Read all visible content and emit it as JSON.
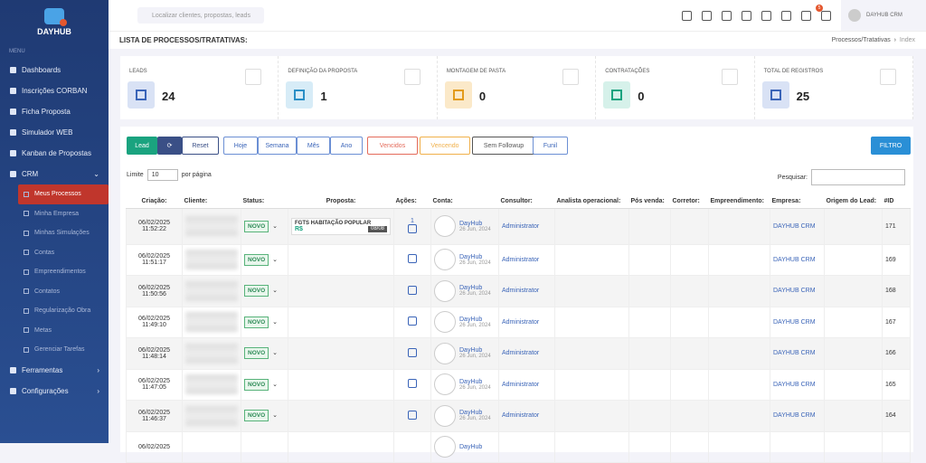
{
  "sidebar": {
    "logo": "DAYHUB",
    "menu_label": "MENU",
    "items": [
      "Dashboards",
      "Inscrições CORBAN",
      "Ficha Proposta",
      "Simulador WEB",
      "Kanban de Propostas"
    ],
    "crm": "CRM",
    "crm_items": [
      "Meus Processos",
      "Minha Empresa",
      "Minhas Simulações",
      "Contas",
      "Empreendimentos",
      "Contatos",
      "Regularização Obra",
      "Metas",
      "Gerenciar Tarefas"
    ],
    "bottom_items": [
      "Ferramentas",
      "Configurações"
    ]
  },
  "topbar": {
    "search_placeholder": "Localizar clientes, propostas, leads",
    "notifications": "5",
    "user": "DAYHUB CRM"
  },
  "header": {
    "title": "LISTA DE PROCESSOS/TRATATIVAS:",
    "breadcrumb": [
      "Processos/Tratativas",
      "Index"
    ]
  },
  "stats": [
    {
      "label": "LEADS",
      "value": 24
    },
    {
      "label": "DEFINIÇÃO DA PROPOSTA",
      "value": 1
    },
    {
      "label": "MONTAGEM DE PASTA",
      "value": 0
    },
    {
      "label": "CONTRATAÇÕES",
      "value": 0
    },
    {
      "label": "TOTAL DE REGISTROS",
      "value": 25
    }
  ],
  "toolbar": {
    "add": "Lead",
    "reset": "Reset",
    "periods": [
      "Hoje",
      "Semana",
      "Mês",
      "Ano"
    ],
    "filters": [
      "Vencidos",
      "Vencendo",
      "Sem Followup"
    ],
    "funnel": "Funil",
    "filter": "FILTRO"
  },
  "list_controls": {
    "limit_label": "Limite",
    "limit": "10",
    "per_page": "por página",
    "search_label": "Pesquisar:"
  },
  "table": {
    "headers": [
      "Criação:",
      "Cliente:",
      "Status:",
      "Proposta:",
      "Ações:",
      "Conta:",
      "Consultor:",
      "Analista operacional:",
      "Pós venda:",
      "Corretor:",
      "Empreendimento:",
      "Empresa:",
      "Origem do Lead:",
      "#ID"
    ],
    "rows": [
      {
        "created": "06/02/2025 11:52:22",
        "status": "NOVO",
        "proposal": {
          "name": "FGTS HABITAÇÃO POPULAR",
          "currency": "R$",
          "date": "08/08"
        },
        "actions_count": "1",
        "account": "DayHub",
        "account_date": "26 Jun, 2024",
        "consultant": "Administrator",
        "company": "DAYHUB CRM",
        "id": 171
      },
      {
        "created": "06/02/2025 11:51:17",
        "status": "NOVO",
        "account": "DayHub",
        "account_date": "26 Jun, 2024",
        "consultant": "Administrator",
        "company": "DAYHUB CRM",
        "id": 169
      },
      {
        "created": "06/02/2025 11:50:56",
        "status": "NOVO",
        "account": "DayHub",
        "account_date": "26 Jun, 2024",
        "consultant": "Administrator",
        "company": "DAYHUB CRM",
        "id": 168
      },
      {
        "created": "06/02/2025 11:49:10",
        "status": "NOVO",
        "account": "DayHub",
        "account_date": "26 Jun, 2024",
        "consultant": "Administrator",
        "company": "DAYHUB CRM",
        "id": 167
      },
      {
        "created": "06/02/2025 11:48:14",
        "status": "NOVO",
        "account": "DayHub",
        "account_date": "26 Jun, 2024",
        "consultant": "Administrator",
        "company": "DAYHUB CRM",
        "id": 166
      },
      {
        "created": "06/02/2025 11:47:05",
        "status": "NOVO",
        "account": "DayHub",
        "account_date": "26 Jun, 2024",
        "consultant": "Administrator",
        "company": "DAYHUB CRM",
        "id": 165
      },
      {
        "created": "06/02/2025 11:46:37",
        "status": "NOVO",
        "account": "DayHub",
        "account_date": "26 Jun, 2024",
        "consultant": "Administrator",
        "company": "DAYHUB CRM",
        "id": 164
      },
      {
        "created": "06/02/2025",
        "account": "DayHub"
      }
    ]
  }
}
